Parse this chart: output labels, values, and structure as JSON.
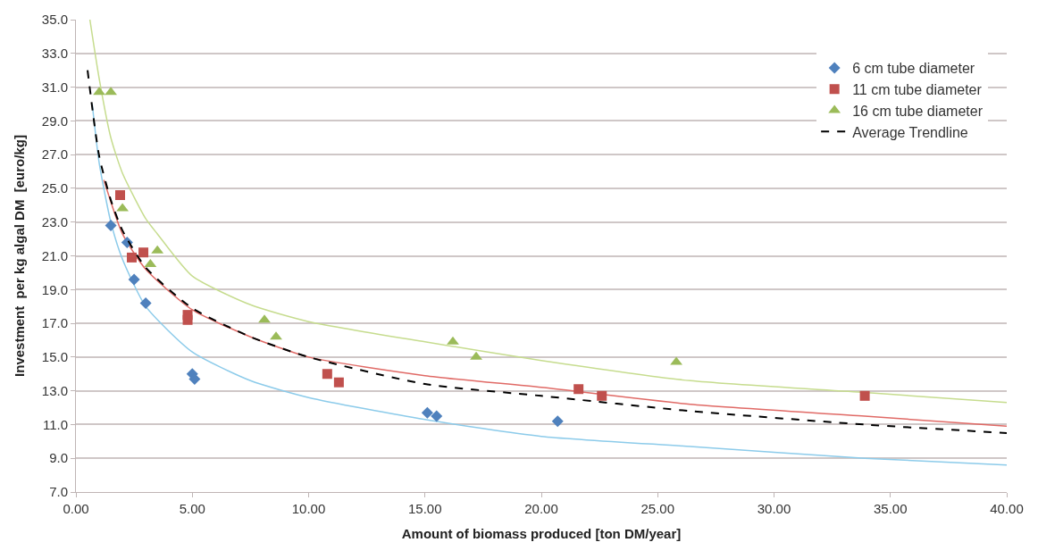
{
  "chart_data": {
    "type": "scatter",
    "xlabel": "Amount of biomass produced [ton DM/year]",
    "ylabel": "Investment  per kg algal DM  [euro/kg]",
    "xlim": [
      0,
      40
    ],
    "ylim": [
      7,
      35
    ],
    "xticks": [
      {
        "value": 0,
        "label": "0.00"
      },
      {
        "value": 5,
        "label": "5.00"
      },
      {
        "value": 10,
        "label": "10.00"
      },
      {
        "value": 15,
        "label": "15.00"
      },
      {
        "value": 20,
        "label": "20.00"
      },
      {
        "value": 25,
        "label": "25.00"
      },
      {
        "value": 30,
        "label": "30.00"
      },
      {
        "value": 35,
        "label": "35.00"
      },
      {
        "value": 40,
        "label": "40.00"
      }
    ],
    "yticks": [
      {
        "value": 7,
        "label": "7.0"
      },
      {
        "value": 9,
        "label": "9.0"
      },
      {
        "value": 11,
        "label": "11.0"
      },
      {
        "value": 13,
        "label": "13.0"
      },
      {
        "value": 15,
        "label": "15.0"
      },
      {
        "value": 17,
        "label": "17.0"
      },
      {
        "value": 19,
        "label": "19.0"
      },
      {
        "value": 21,
        "label": "21.0"
      },
      {
        "value": 23,
        "label": "23.0"
      },
      {
        "value": 25,
        "label": "25.0"
      },
      {
        "value": 27,
        "label": "27.0"
      },
      {
        "value": 29,
        "label": "29.0"
      },
      {
        "value": 31,
        "label": "31.0"
      },
      {
        "value": 33,
        "label": "33.0"
      },
      {
        "value": 35,
        "label": "35.0"
      }
    ],
    "grid": "y",
    "legend": "top right",
    "series": [
      {
        "type": "line",
        "color": "#8ccbea",
        "line_style": "solid",
        "x": [
          0.7,
          1,
          1.5,
          2,
          3,
          5,
          7.5,
          10,
          15,
          20,
          26.4,
          33.9,
          40
        ],
        "values": [
          30,
          26.5,
          23,
          20.8,
          18,
          15.3,
          13.6,
          12.6,
          11.3,
          10.3,
          9.7,
          9,
          8.6
        ]
      },
      {
        "type": "line",
        "color": "#e06a66",
        "line_style": "solid",
        "x": [
          1.2,
          2,
          3,
          5,
          7.5,
          10,
          15,
          20,
          26.4,
          33.9,
          40
        ],
        "values": [
          25.5,
          22.3,
          20.2,
          17.8,
          16.2,
          15,
          13.9,
          13.2,
          12.2,
          11.5,
          10.9
        ]
      },
      {
        "type": "line",
        "color": "#c6dc8e",
        "line_style": "solid",
        "x": [
          0.6,
          1,
          1.5,
          2,
          3,
          3.5,
          5,
          7.5,
          10,
          15,
          20,
          26.4,
          33.9,
          40
        ],
        "values": [
          35,
          31.5,
          28,
          25.9,
          23.2,
          22.3,
          19.8,
          18.1,
          17.1,
          15.9,
          14.8,
          13.6,
          12.9,
          12.3
        ]
      },
      {
        "name": "6 cm tube diameter",
        "marker": "diamond",
        "color": "#4f81bd",
        "x": [
          1.5,
          2.2,
          2.5,
          3,
          5,
          5.1,
          15.1,
          15.5,
          20.7
        ],
        "values": [
          22.8,
          21.8,
          19.6,
          18.2,
          14,
          13.7,
          11.7,
          11.5,
          11.2
        ]
      },
      {
        "name": "11 cm tube diameter",
        "marker": "square",
        "color": "#c0504d",
        "x": [
          1.9,
          2.4,
          2.9,
          4.8,
          4.8,
          10.8,
          11.3,
          21.6,
          22.6,
          33.9
        ],
        "values": [
          24.6,
          20.9,
          21.2,
          17.5,
          17.2,
          14,
          13.5,
          13.1,
          12.7,
          12.7
        ]
      },
      {
        "name": "16 cm tube diameter",
        "marker": "triangle",
        "color": "#9bbb59",
        "x": [
          1,
          1.5,
          2,
          3.2,
          3.5,
          8.1,
          8.6,
          16.2,
          17.2,
          25.8
        ],
        "values": [
          30.7,
          30.7,
          23.8,
          20.5,
          21.3,
          17.2,
          16.2,
          15.9,
          15,
          14.7
        ]
      },
      {
        "name": "Average Trendline",
        "type": "line",
        "color": "#000000",
        "line_style": "dashed",
        "x": [
          0.5,
          1,
          1.5,
          2,
          3,
          5,
          7.5,
          10,
          15,
          20,
          26.4,
          33.9,
          40
        ],
        "values": [
          32,
          26.9,
          24.3,
          22.5,
          20.3,
          17.9,
          16.2,
          15,
          13.4,
          12.7,
          11.8,
          11,
          10.5
        ]
      }
    ]
  }
}
